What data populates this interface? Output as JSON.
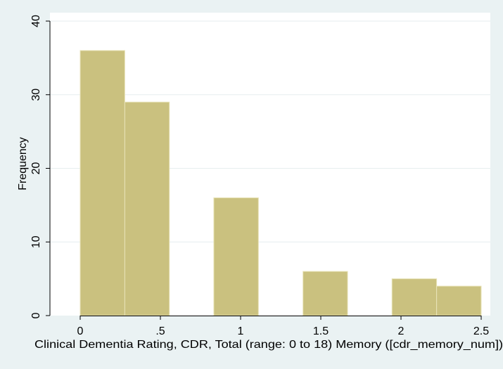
{
  "chart_data": {
    "type": "bar",
    "title": "",
    "xlabel": "Clinical Dementia Rating, CDR, Total (range: 0 to 18)  Memory ([cdr_memory_num])",
    "ylabel": "Frequency",
    "x_tick_labels": [
      "0",
      ".5",
      "1",
      "1.5",
      "2",
      "2.5"
    ],
    "y_tick_labels": [
      "0",
      "10",
      "20",
      "30",
      "40"
    ],
    "xlim": [
      -0.2,
      2.5
    ],
    "ylim": [
      0,
      40
    ],
    "bins": [
      {
        "x_start": 0.0,
        "x_end": 0.278,
        "value": 36
      },
      {
        "x_start": 0.278,
        "x_end": 0.556,
        "value": 29
      },
      {
        "x_start": 0.833,
        "x_end": 1.111,
        "value": 16
      },
      {
        "x_start": 1.389,
        "x_end": 1.667,
        "value": 6
      },
      {
        "x_start": 1.944,
        "x_end": 2.222,
        "value": 5
      },
      {
        "x_start": 2.222,
        "x_end": 2.5,
        "value": 4
      }
    ],
    "grid": true,
    "legend": "none",
    "colors": {
      "background": "#eaf2f3",
      "plot_area": "#ffffff",
      "bar_fill": "#cac17f",
      "bar_stroke": "#e8e3b8",
      "grid": "#e6eeef",
      "axis": "#000000"
    }
  }
}
